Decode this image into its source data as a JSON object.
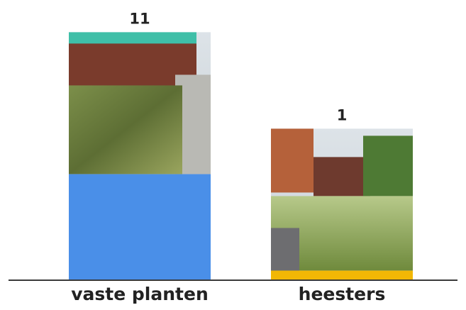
{
  "chart_data": {
    "type": "bar",
    "categories": [
      "vaste planten",
      "heesters"
    ],
    "values": [
      11,
      1
    ],
    "colors": [
      "#4a8fe8",
      "#f2b705"
    ]
  }
}
